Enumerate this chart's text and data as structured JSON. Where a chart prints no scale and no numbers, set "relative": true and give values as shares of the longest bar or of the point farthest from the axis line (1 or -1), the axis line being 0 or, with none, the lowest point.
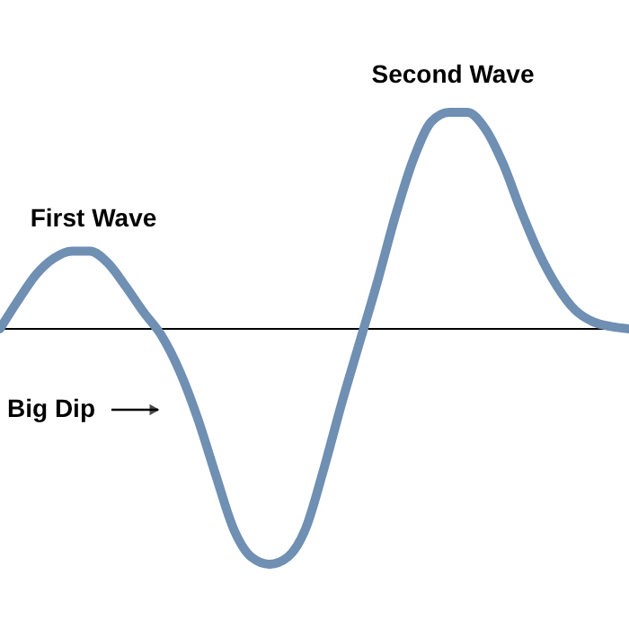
{
  "chart_data": {
    "type": "line",
    "relative": true,
    "categories": [
      null,
      null,
      null,
      null,
      null,
      null,
      null,
      null,
      null,
      null,
      null,
      null,
      null,
      null,
      null,
      null,
      null,
      null,
      null,
      null,
      null,
      null,
      null,
      null,
      null,
      null,
      null,
      null,
      null,
      null,
      null,
      null,
      null,
      null,
      null,
      null
    ],
    "series": [
      {
        "color": "#6f8fb3",
        "values": [
          0,
          0.12,
          0.23,
          0.3,
          0.33,
          0.33,
          0.28,
          0.18,
          0.07,
          -0.03,
          -0.18,
          -0.38,
          -0.62,
          -0.85,
          -0.97,
          -1,
          -0.97,
          -0.85,
          -0.6,
          -0.32,
          -0.06,
          0.2,
          0.48,
          0.72,
          0.88,
          0.92,
          0.92,
          0.85,
          0.7,
          0.5,
          0.32,
          0.18,
          0.08,
          0.03,
          0.01,
          0
        ]
      }
    ],
    "annotations": [
      "First Wave",
      "Second Wave",
      "Big Dip"
    ],
    "grid": false
  }
}
